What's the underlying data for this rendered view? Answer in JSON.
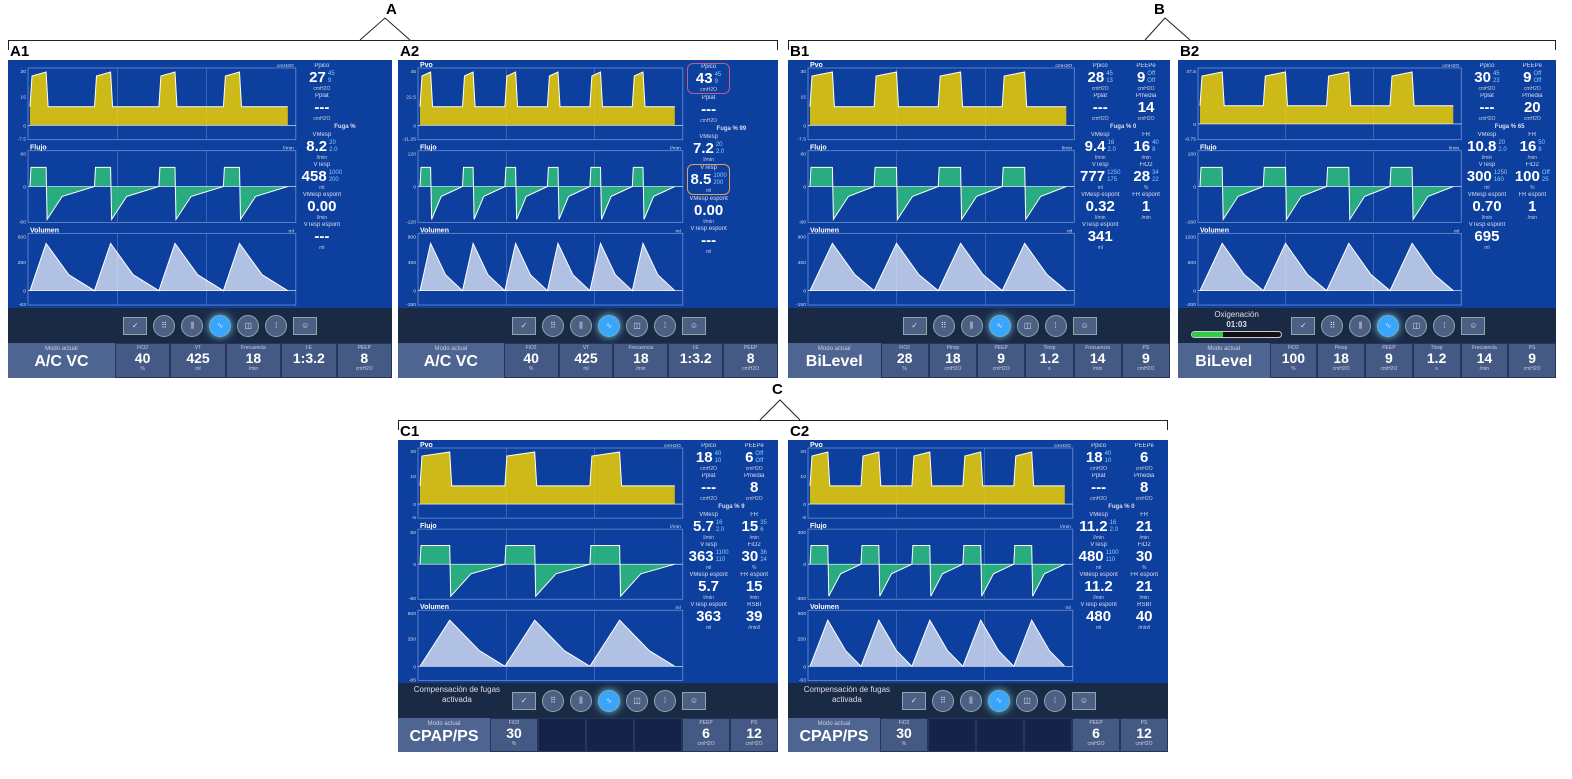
{
  "groups": [
    {
      "label": "A"
    },
    {
      "label": "B"
    },
    {
      "label": "C"
    }
  ],
  "colors": {
    "screen": "#0d3f9e",
    "pressure_fill": "#f0d000",
    "flow_fill": "#2fbf7a",
    "volume_fill": "#e8eefa",
    "trace": "#ffffff",
    "alarm_trace": "#e07040"
  },
  "toolbar_icons": [
    "checklist-icon",
    "grid-icon",
    "split-icon",
    "waveform-icon",
    "loop-icon",
    "dots-icon",
    "user-settings-icon"
  ],
  "panels": [
    {
      "label": "A1",
      "waves": [
        {
          "title": "",
          "unit": "cmH2O",
          "ticks": [
            "30",
            "15",
            "0",
            "-7.5"
          ]
        },
        {
          "title": "Flujo",
          "unit": "l/min",
          "ticks": [
            "60",
            "0",
            "-60"
          ]
        },
        {
          "title": "Volumen",
          "unit": "ml",
          "ticks": [
            "500",
            "250",
            "0",
            "-63"
          ]
        }
      ],
      "readouts": [
        {
          "label": "Ppico",
          "value": "27",
          "unit": "cmH2O",
          "limits": "45 9"
        },
        {
          "label": "",
          "value": "",
          "unit": "",
          "limits": ""
        },
        {
          "label": "Pplat",
          "value": "---",
          "unit": "cmH2O",
          "limits": ""
        },
        {
          "label": "",
          "value": "",
          "unit": "",
          "limits": ""
        },
        {
          "label": "Fuga %",
          "full": true
        },
        {
          "label": "VMesp",
          "value": "8.2",
          "unit": "l/min",
          "limits": "20 2.0"
        },
        {
          "label": "",
          "value": "",
          "unit": "",
          "limits": ""
        },
        {
          "label": "VTesp",
          "value": "458",
          "unit": "ml",
          "limits": "1000 200"
        },
        {
          "label": "",
          "value": "",
          "unit": "",
          "limits": ""
        },
        {
          "label": "VMesp espont",
          "value": "0.00",
          "unit": "l/min",
          "limits": ""
        },
        {
          "label": "",
          "value": "",
          "unit": "",
          "limits": ""
        },
        {
          "label": "VTesp espont",
          "value": "---",
          "unit": "ml",
          "limits": ""
        }
      ],
      "mode_label": "Modo actual",
      "mode": "A/C VC",
      "settings": [
        {
          "label": "FiO2",
          "value": "40",
          "unit": "%"
        },
        {
          "label": "VT",
          "value": "425",
          "unit": "ml"
        },
        {
          "label": "Frecuencia",
          "value": "18",
          "unit": "/min"
        },
        {
          "label": "I:E",
          "value": "1:3.2",
          "unit": ""
        },
        {
          "label": "PEEP",
          "value": "8",
          "unit": "cmH2O"
        }
      ]
    },
    {
      "label": "A2",
      "waves": [
        {
          "title": "Pvo",
          "unit": "",
          "ticks": [
            "45",
            "22.5",
            "0",
            "-11.25"
          ]
        },
        {
          "title": "Flujo",
          "unit": "l/min",
          "ticks": [
            "120",
            "0",
            "-120"
          ]
        },
        {
          "title": "Volumen",
          "unit": "ml",
          "ticks": [
            "900",
            "450",
            "0",
            "-150"
          ]
        }
      ],
      "readouts": [
        {
          "label": "Ppico",
          "value": "43",
          "unit": "cmH2O",
          "limits": "45 9",
          "hl": "hl"
        },
        {
          "label": "",
          "value": "",
          "unit": "",
          "limits": ""
        },
        {
          "label": "Pplat",
          "value": "---",
          "unit": "cmH2O",
          "limits": ""
        },
        {
          "label": "",
          "value": "",
          "unit": "",
          "limits": ""
        },
        {
          "label": "Fuga % 99",
          "full": true
        },
        {
          "label": "VMesp",
          "value": "7.2",
          "unit": "l/min",
          "limits": "20 2.0"
        },
        {
          "label": "",
          "value": "",
          "unit": "",
          "limits": ""
        },
        {
          "label": "VTesp",
          "value": "8.5",
          "unit": "ml",
          "limits": "1000 200",
          "hl": "hl2"
        },
        {
          "label": "",
          "value": "",
          "unit": "",
          "limits": ""
        },
        {
          "label": "VMesp espont",
          "value": "0.00",
          "unit": "l/min",
          "limits": ""
        },
        {
          "label": "",
          "value": "",
          "unit": "",
          "limits": ""
        },
        {
          "label": "VTesp espont",
          "value": "---",
          "unit": "ml",
          "limits": ""
        }
      ],
      "mode_label": "Modo actual",
      "mode": "A/C VC",
      "settings": [
        {
          "label": "FiO2",
          "value": "40",
          "unit": "%"
        },
        {
          "label": "VT",
          "value": "425",
          "unit": "ml"
        },
        {
          "label": "Frecuencia",
          "value": "18",
          "unit": "/min"
        },
        {
          "label": "I:E",
          "value": "1:3.2",
          "unit": ""
        },
        {
          "label": "PEEP",
          "value": "8",
          "unit": "cmH2O"
        }
      ]
    },
    {
      "label": "B1",
      "waves": [
        {
          "title": "Pvo",
          "unit": "cmH2O",
          "ticks": [
            "30",
            "15",
            "0",
            "-7.5"
          ]
        },
        {
          "title": "Flujo",
          "unit": "l/min",
          "ticks": [
            "80",
            "0",
            "-80"
          ]
        },
        {
          "title": "Volumen",
          "unit": "ml",
          "ticks": [
            "900",
            "450",
            "0",
            "-150"
          ]
        }
      ],
      "readouts": [
        {
          "label": "Ppico",
          "value": "28",
          "unit": "cmH2O",
          "limits": "45 13"
        },
        {
          "label": "PEEPe",
          "value": "9",
          "unit": "cmH2O",
          "limits": "Off Off"
        },
        {
          "label": "Pplat",
          "value": "---",
          "unit": "cmH2O",
          "limits": ""
        },
        {
          "label": "Pmedia",
          "value": "14",
          "unit": "cmH2O",
          "limits": ""
        },
        {
          "label": "Fuga % 0",
          "full": true
        },
        {
          "label": "VMesp",
          "value": "9.4",
          "unit": "l/min",
          "limits": "16 2.0"
        },
        {
          "label": "FR",
          "value": "16",
          "unit": "/min",
          "limits": "40 8"
        },
        {
          "label": "VTesp",
          "value": "777",
          "unit": "ml",
          "limits": "1250 175"
        },
        {
          "label": "FiO2",
          "value": "28",
          "unit": "%",
          "limits": "34 22"
        },
        {
          "label": "VMesp espont",
          "value": "0.32",
          "unit": "l/min",
          "limits": ""
        },
        {
          "label": "FR espont",
          "value": "1",
          "unit": "/min",
          "limits": ""
        },
        {
          "label": "VTesp espont",
          "value": "341",
          "unit": "ml",
          "limits": ""
        }
      ],
      "mode_label": "Modo actual",
      "mode": "BiLevel",
      "settings": [
        {
          "label": "FiO2",
          "value": "28",
          "unit": "%"
        },
        {
          "label": "Pinsp",
          "value": "18",
          "unit": "cmH2O"
        },
        {
          "label": "PEEP",
          "value": "9",
          "unit": "cmH2O"
        },
        {
          "label": "Tinsp",
          "value": "1.2",
          "unit": "s"
        },
        {
          "label": "Frecuencia",
          "value": "14",
          "unit": "/min"
        },
        {
          "label": "PS",
          "value": "9",
          "unit": "cmH2O"
        }
      ]
    },
    {
      "label": "B2",
      "waves": [
        {
          "title": "",
          "unit": "cmH2O",
          "ticks": [
            "37.5",
            "0",
            "-8.75"
          ]
        },
        {
          "title": "Flujo",
          "unit": "l/min",
          "ticks": [
            "160",
            "0",
            "-160"
          ]
        },
        {
          "title": "Volumen",
          "unit": "ml",
          "ticks": [
            "1200",
            "600",
            "0",
            "-200"
          ]
        }
      ],
      "readouts": [
        {
          "label": "Ppico",
          "value": "30",
          "unit": "cmH2O",
          "limits": "45 23"
        },
        {
          "label": "PEEPe",
          "value": "9",
          "unit": "cmH2O",
          "limits": "Off Off"
        },
        {
          "label": "Pplat",
          "value": "---",
          "unit": "cmH2O",
          "limits": ""
        },
        {
          "label": "Pmedia",
          "value": "20",
          "unit": "cmH2O",
          "limits": ""
        },
        {
          "label": "Fuga % 65",
          "full": true
        },
        {
          "label": "VMesp",
          "value": "10.8",
          "unit": "l/min",
          "limits": "20 2.0"
        },
        {
          "label": "FR",
          "value": "16",
          "unit": "/min",
          "limits": "50 8"
        },
        {
          "label": "VTesp",
          "value": "300",
          "unit": "ml",
          "limits": "1250 160"
        },
        {
          "label": "FiO2",
          "value": "100",
          "unit": "%",
          "limits": "Off 25"
        },
        {
          "label": "VMesp espont",
          "value": "0.70",
          "unit": "l/min",
          "limits": ""
        },
        {
          "label": "FR espont",
          "value": "1",
          "unit": "/min",
          "limits": ""
        },
        {
          "label": "VTesp espont",
          "value": "695",
          "unit": "ml",
          "limits": ""
        }
      ],
      "status": {
        "title": "Oxigenación",
        "time": "01:03",
        "progress": 0.35
      },
      "mode_label": "Modo actual",
      "mode": "BiLevel",
      "settings": [
        {
          "label": "FiO2",
          "value": "100",
          "unit": "%"
        },
        {
          "label": "Pinsp",
          "value": "18",
          "unit": "cmH2O"
        },
        {
          "label": "PEEP",
          "value": "9",
          "unit": "cmH2O"
        },
        {
          "label": "Tinsp",
          "value": "1.2",
          "unit": "s"
        },
        {
          "label": "Frecuencia",
          "value": "14",
          "unit": "/min"
        },
        {
          "label": "PS",
          "value": "9",
          "unit": "cmH2O"
        }
      ]
    },
    {
      "label": "C1",
      "waves": [
        {
          "title": "Pvo",
          "unit": "cmH2O",
          "ticks": [
            "20",
            "10",
            "0",
            "-5"
          ]
        },
        {
          "title": "Flujo",
          "unit": "l/min",
          "ticks": [
            "60",
            "0",
            "-60"
          ]
        },
        {
          "title": "Volumen",
          "unit": "ml",
          "ticks": [
            "500",
            "250",
            "0",
            "-85"
          ]
        }
      ],
      "readouts": [
        {
          "label": "Ppico",
          "value": "18",
          "unit": "cmH2O",
          "limits": "40 10"
        },
        {
          "label": "PEEPe",
          "value": "6",
          "unit": "cmH2O",
          "limits": "Off Off"
        },
        {
          "label": "Pplat",
          "value": "---",
          "unit": "cmH2O",
          "limits": ""
        },
        {
          "label": "Pmedia",
          "value": "8",
          "unit": "cmH2O",
          "limits": ""
        },
        {
          "label": "Fuga % 9",
          "full": true
        },
        {
          "label": "VMesp",
          "value": "5.7",
          "unit": "l/min",
          "limits": "16 2.0"
        },
        {
          "label": "FR",
          "value": "15",
          "unit": "/min",
          "limits": "35 6"
        },
        {
          "label": "VTesp",
          "value": "363",
          "unit": "ml",
          "limits": "1100 110"
        },
        {
          "label": "FiO2",
          "value": "30",
          "unit": "%",
          "limits": "36 24"
        },
        {
          "label": "VMesp espont",
          "value": "5.7",
          "unit": "l/min",
          "limits": ""
        },
        {
          "label": "FR espont",
          "value": "15",
          "unit": "/min",
          "limits": ""
        },
        {
          "label": "VTesp espont",
          "value": "363",
          "unit": "ml",
          "limits": ""
        },
        {
          "label": "RSBI",
          "value": "39",
          "unit": "/min/l",
          "limits": ""
        }
      ],
      "status": {
        "title": "Compensación de fugas activada"
      },
      "mode_label": "Modo actual",
      "mode": "CPAP/PS",
      "settings": [
        {
          "label": "FiO2",
          "value": "30",
          "unit": "%"
        },
        {
          "label": "",
          "value": "",
          "unit": ""
        },
        {
          "label": "",
          "value": "",
          "unit": ""
        },
        {
          "label": "",
          "value": "",
          "unit": ""
        },
        {
          "label": "PEEP",
          "value": "6",
          "unit": "cmH2O"
        },
        {
          "label": "PS",
          "value": "12",
          "unit": "cmH2O"
        }
      ]
    },
    {
      "label": "C2",
      "waves": [
        {
          "title": "Pvo",
          "unit": "cmH2O",
          "ticks": [
            "20",
            "10",
            "0",
            "-5"
          ]
        },
        {
          "title": "Flujo",
          "unit": "l/min",
          "ticks": [
            "300",
            "0",
            "-300"
          ]
        },
        {
          "title": "Volumen",
          "unit": "ml",
          "ticks": [
            "500",
            "250",
            "0",
            "-63"
          ]
        }
      ],
      "readouts": [
        {
          "label": "Ppico",
          "value": "18",
          "unit": "cmH2O",
          "limits": "40 10"
        },
        {
          "label": "PEEPe",
          "value": "6",
          "unit": "cmH2O",
          "limits": ""
        },
        {
          "label": "Pplat",
          "value": "---",
          "unit": "cmH2O",
          "limits": ""
        },
        {
          "label": "Pmedia",
          "value": "8",
          "unit": "cmH2O",
          "limits": ""
        },
        {
          "label": "Fuga % 0",
          "full": true
        },
        {
          "label": "VMesp",
          "value": "11.2",
          "unit": "l/min",
          "limits": "16 2.0"
        },
        {
          "label": "FR",
          "value": "21",
          "unit": "/min",
          "limits": ""
        },
        {
          "label": "VTesp",
          "value": "480",
          "unit": "ml",
          "limits": "1100 110"
        },
        {
          "label": "FiO2",
          "value": "30",
          "unit": "%",
          "limits": ""
        },
        {
          "label": "VMesp espont",
          "value": "11.2",
          "unit": "l/min",
          "limits": ""
        },
        {
          "label": "FR espont",
          "value": "21",
          "unit": "/min",
          "limits": ""
        },
        {
          "label": "VTesp espont",
          "value": "480",
          "unit": "ml",
          "limits": ""
        },
        {
          "label": "RSBI",
          "value": "40",
          "unit": "/min/l",
          "limits": ""
        }
      ],
      "status": {
        "title": "Compensación de fugas activada"
      },
      "mode_label": "Modo actual",
      "mode": "CPAP/PS",
      "settings": [
        {
          "label": "FiO2",
          "value": "30",
          "unit": "%"
        },
        {
          "label": "",
          "value": "",
          "unit": ""
        },
        {
          "label": "",
          "value": "",
          "unit": ""
        },
        {
          "label": "",
          "value": "",
          "unit": ""
        },
        {
          "label": "PEEP",
          "value": "6",
          "unit": "cmH2O"
        },
        {
          "label": "PS",
          "value": "12",
          "unit": "cmH2O"
        }
      ]
    }
  ]
}
